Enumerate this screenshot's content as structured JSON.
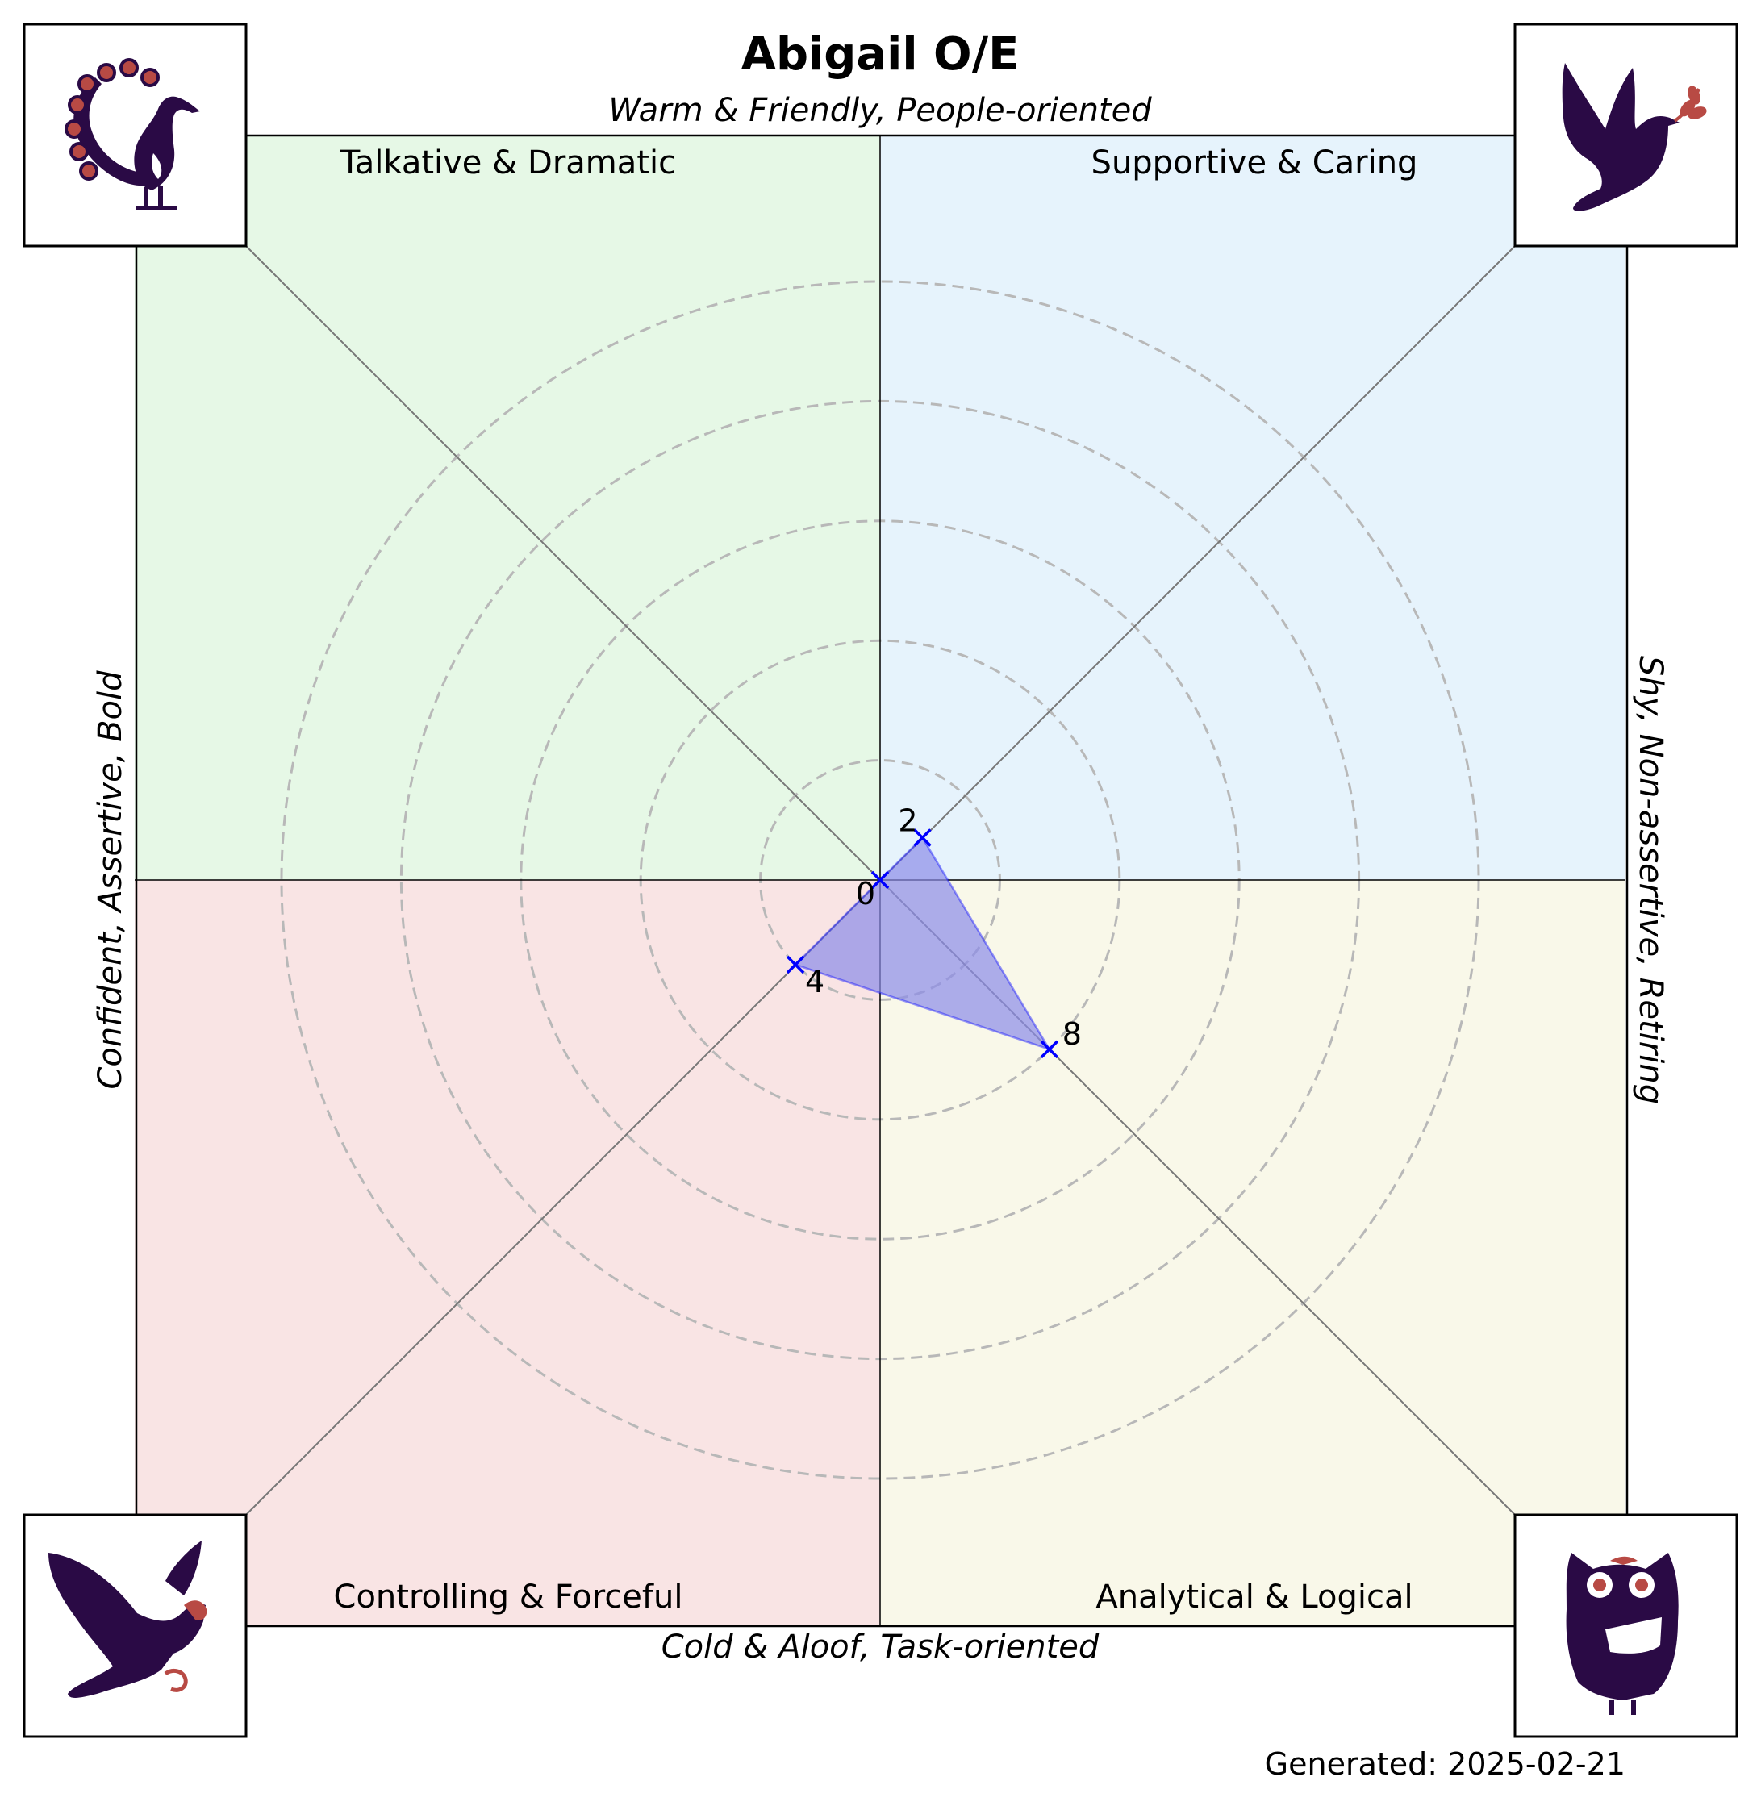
{
  "chart_data": {
    "type": "radar",
    "title": "Abigail O/E",
    "axis_labels": {
      "top": "Warm & Friendly, People-oriented",
      "bottom": "Cold & Aloof, Task-oriented",
      "left": "Confident, Assertive, Bold",
      "right": "Shy, Non-assertive, Retiring"
    },
    "quadrants": [
      {
        "position": "top-left",
        "label": "Talkative & Dramatic",
        "color": "#e6f8e6",
        "icon": "peacock-icon"
      },
      {
        "position": "top-right",
        "label": "Supportive & Caring",
        "color": "#e6f3fc",
        "icon": "dove-icon"
      },
      {
        "position": "bottom-left",
        "label": "Controlling & Forceful",
        "color": "#f9e4e4",
        "icon": "eagle-icon"
      },
      {
        "position": "bottom-right",
        "label": "Analytical & Logical",
        "color": "#f9f8e9",
        "icon": "owl-icon"
      }
    ],
    "points": [
      {
        "quadrant": "top-left",
        "value": 0,
        "label": "0"
      },
      {
        "quadrant": "top-right",
        "value": 2,
        "label": "2"
      },
      {
        "quadrant": "bottom-right",
        "value": 8,
        "label": "8"
      },
      {
        "quadrant": "bottom-left",
        "value": 4,
        "label": "4"
      }
    ],
    "rings": [
      4,
      8,
      12,
      16,
      20
    ],
    "max_value": 20,
    "series_color": "#0000ff",
    "fill_color": "#8c8ce8",
    "grid": true
  },
  "icon_colors": {
    "dark": "#2a0a45",
    "accent": "#b84a44"
  },
  "footer": {
    "generated": "Generated: 2025-02-21"
  }
}
